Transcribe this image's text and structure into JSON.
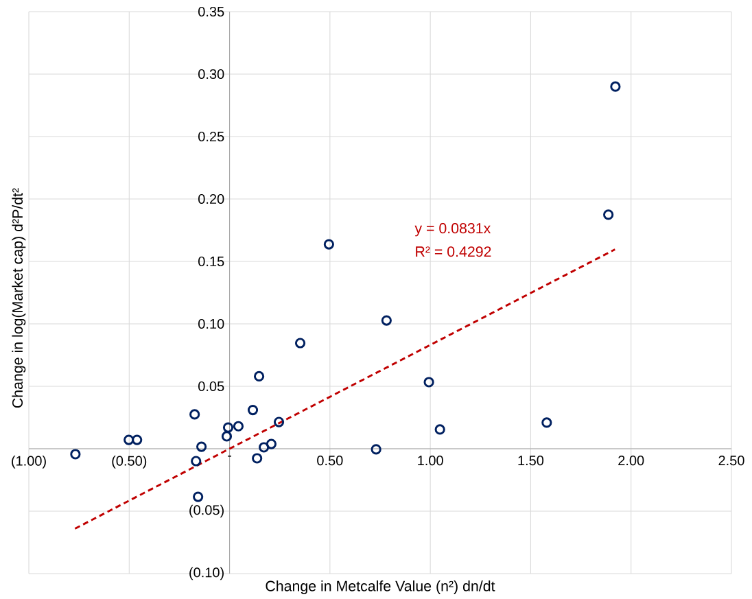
{
  "chart_data": {
    "type": "scatter",
    "xlabel": "Change in Metcalfe Value (n²)  dn/dt",
    "ylabel": "Change in log(Market cap)  d²P/dt²",
    "xlim": [
      -1,
      2.5
    ],
    "ylim": [
      -0.1,
      0.35
    ],
    "xticks": [
      {
        "value": -1,
        "label": "(1.00)"
      },
      {
        "value": -0.5,
        "label": "(0.50)"
      },
      {
        "value": 0,
        "label": "-"
      },
      {
        "value": 0.5,
        "label": "0.50"
      },
      {
        "value": 1,
        "label": "1.00"
      },
      {
        "value": 1.5,
        "label": "1.50"
      },
      {
        "value": 2,
        "label": "2.00"
      },
      {
        "value": 2.5,
        "label": "2.50"
      }
    ],
    "yticks": [
      {
        "value": -0.1,
        "label": "(0.10)"
      },
      {
        "value": -0.05,
        "label": "(0.05)"
      },
      {
        "value": 0,
        "label": null
      },
      {
        "value": 0.05,
        "label": "0.05"
      },
      {
        "value": 0.1,
        "label": "0.10"
      },
      {
        "value": 0.15,
        "label": "0.15"
      },
      {
        "value": 0.2,
        "label": "0.20"
      },
      {
        "value": 0.25,
        "label": "0.25"
      },
      {
        "value": 0.3,
        "label": "0.30"
      },
      {
        "value": 0.35,
        "label": "0.35"
      }
    ],
    "grid": true,
    "series": [
      {
        "marker": "circle",
        "color": "#002060",
        "x": [
          -0.768,
          -0.502,
          -0.461,
          -0.174,
          -0.14,
          -0.167,
          -0.157,
          -0.007,
          -0.014,
          0.044,
          0.116,
          0.147,
          0.137,
          0.171,
          0.208,
          0.246,
          0.352,
          0.495,
          0.73,
          0.782,
          0.993,
          1.048,
          1.58,
          1.887,
          1.922
        ],
        "values": [
          -0.0044,
          0.0071,
          0.0071,
          0.0275,
          0.0016,
          -0.0099,
          -0.0385,
          0.017,
          0.0099,
          0.018,
          0.031,
          0.058,
          -0.0077,
          0.0011,
          0.0038,
          0.0214,
          0.0846,
          0.1637,
          -0.0005,
          0.1027,
          0.0533,
          0.0154,
          0.0209,
          0.1874,
          0.29
        ]
      },
      {
        "type": "line",
        "color": "#c00000",
        "line_style": "dashed",
        "x": [
          -0.77,
          1.92
        ],
        "values": [
          -0.064,
          0.1596
        ]
      }
    ],
    "annotations": [
      "y = 0.0831x",
      "R² = 0.4292"
    ]
  }
}
